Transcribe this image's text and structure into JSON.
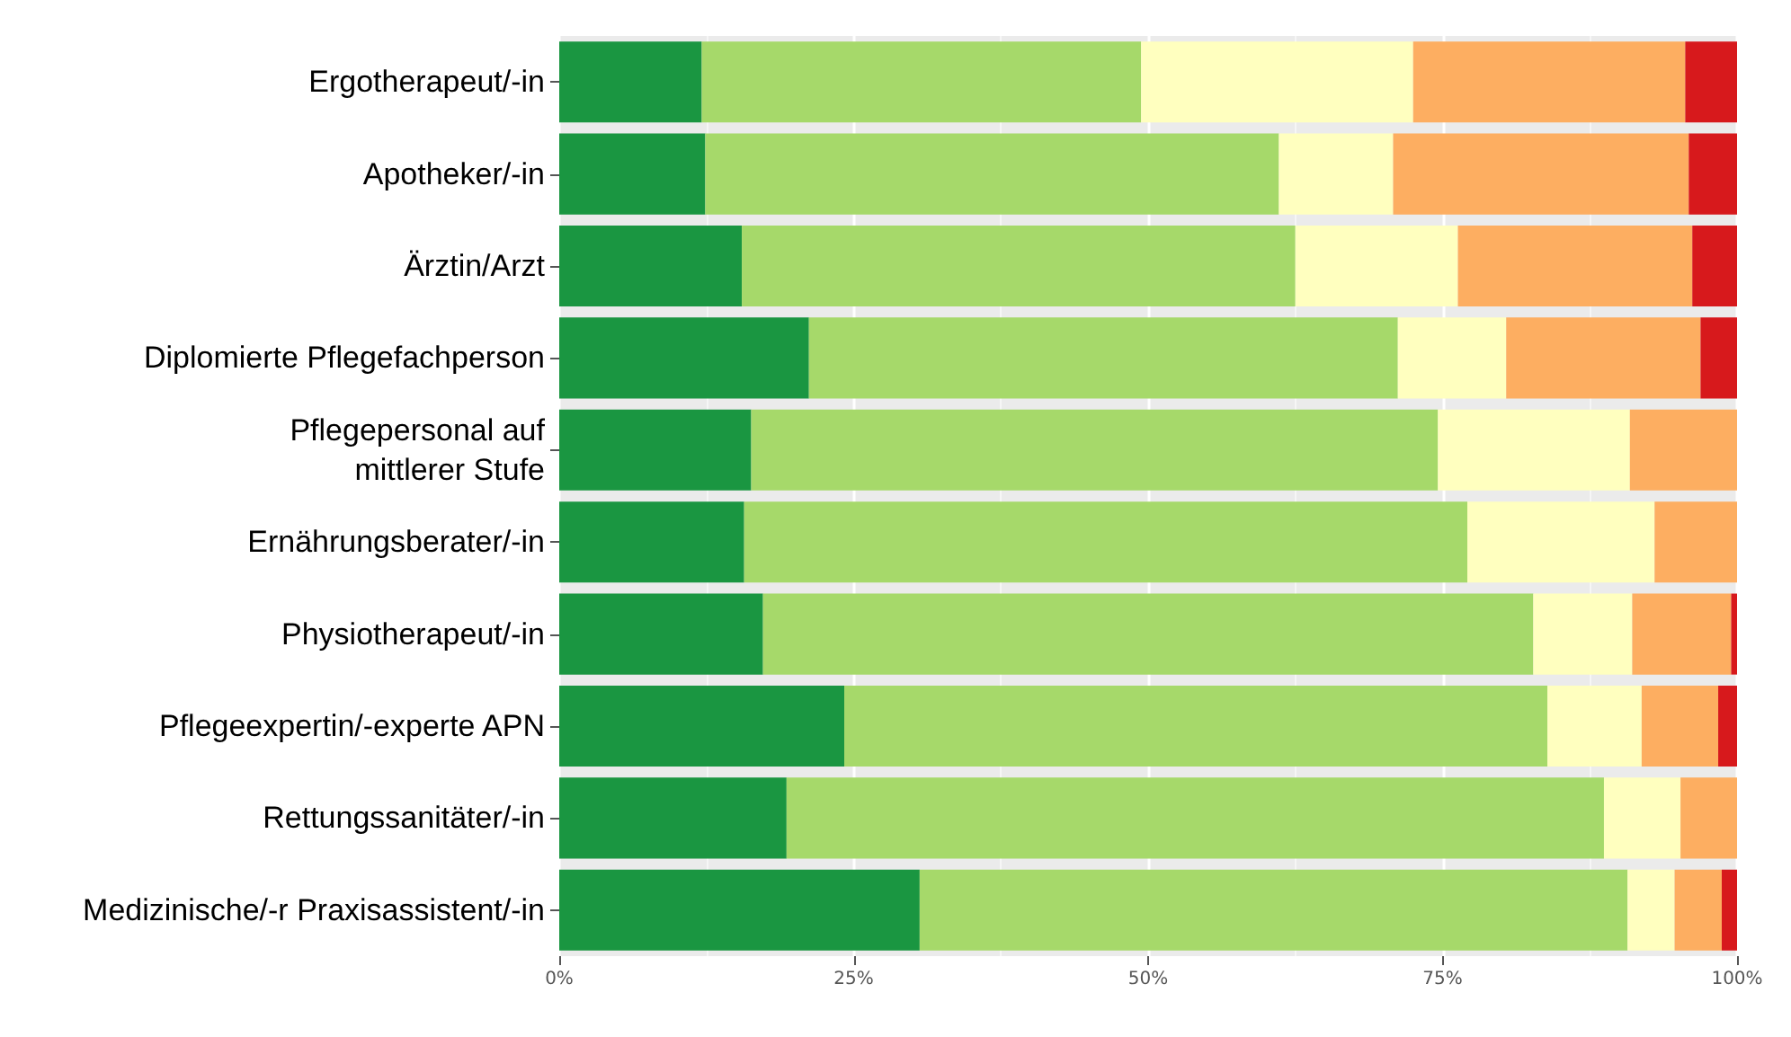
{
  "chart_data": {
    "type": "bar",
    "orientation": "horizontal",
    "stacked": true,
    "grid": "x",
    "categories": [
      "Ergotherapeut/-in",
      "Apotheker/-in",
      "Ärztin/Arzt",
      "Diplomierte Pflegefachperson",
      "Pflegepersonal auf\nmittlerer Stufe",
      "Ernährungsberater/-in",
      "Physiotherapeut/-in",
      "Pflegeexpertin/-experte APN",
      "Rettungssanitäter/-in",
      "Medizinische/-r Praxisassistent/-in"
    ],
    "series": [
      {
        "color": "#1a9641",
        "values": [
          12.1,
          12.4,
          15.5,
          21.2,
          16.3,
          15.7,
          17.3,
          24.2,
          19.3,
          30.6
        ]
      },
      {
        "color": "#a6d96a",
        "values": [
          37.3,
          48.7,
          47.0,
          50.0,
          58.3,
          61.4,
          65.4,
          59.7,
          69.4,
          60.1
        ]
      },
      {
        "color": "#ffffbf",
        "values": [
          23.1,
          9.7,
          13.8,
          9.2,
          16.3,
          15.9,
          8.4,
          8.0,
          6.5,
          4.0
        ]
      },
      {
        "color": "#fdae61",
        "values": [
          23.1,
          25.1,
          19.9,
          16.5,
          9.1,
          7.0,
          8.4,
          6.5,
          4.8,
          4.0
        ]
      },
      {
        "color": "#d7191c",
        "values": [
          4.4,
          4.1,
          3.8,
          3.1,
          0,
          0,
          0.5,
          1.6,
          0,
          1.3
        ]
      }
    ],
    "xlim": [
      0,
      100
    ],
    "xticks": [
      {
        "value": 0,
        "label": "0%"
      },
      {
        "value": 25,
        "label": "25%"
      },
      {
        "value": 50,
        "label": "50%"
      },
      {
        "value": 75,
        "label": "75%"
      },
      {
        "value": 100,
        "label": "100%"
      }
    ]
  }
}
